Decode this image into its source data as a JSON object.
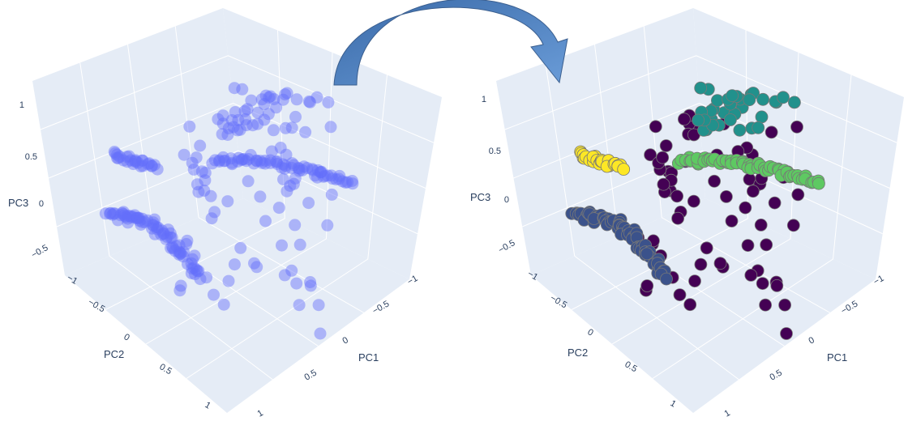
{
  "figure": {
    "arrow_color": "#4a7ab5",
    "plot_bg": "#e5ecf6",
    "grid_color": "#ffffff"
  },
  "chart_data": [
    {
      "type": "scatter3d",
      "xlabel": "PC1",
      "ylabel": "PC2",
      "zlabel": "PC3",
      "x_ticks": [
        "−1",
        "−0.5",
        "0",
        "0.5",
        "1"
      ],
      "y_ticks": [
        "−1",
        "−0.5",
        "0",
        "0.5",
        "1"
      ],
      "z_ticks": [
        "−0.5",
        "0",
        "0.5",
        "1"
      ],
      "xlim": [
        -1,
        1
      ],
      "ylim": [
        -1,
        1
      ],
      "zlim": [
        -0.8,
        1.1
      ],
      "grid": true,
      "color": "#636efa",
      "opacity": 0.45
    },
    {
      "type": "scatter3d",
      "xlabel": "PC1",
      "ylabel": "PC2",
      "zlabel": "PC3",
      "x_ticks": [
        "−1",
        "−0.5",
        "0",
        "0.5",
        "1"
      ],
      "y_ticks": [
        "−1",
        "−0.5",
        "0",
        "0.5",
        "1"
      ],
      "z_ticks": [
        "−0.5",
        "0",
        "0.5",
        "1"
      ],
      "xlim": [
        -1,
        1
      ],
      "ylim": [
        -1,
        1
      ],
      "zlim": [
        -0.8,
        1.1
      ],
      "grid": true,
      "cluster_colors": [
        "#440154",
        "#3b528b",
        "#21918c",
        "#5ec962",
        "#fde725"
      ],
      "opacity": 1
    }
  ]
}
